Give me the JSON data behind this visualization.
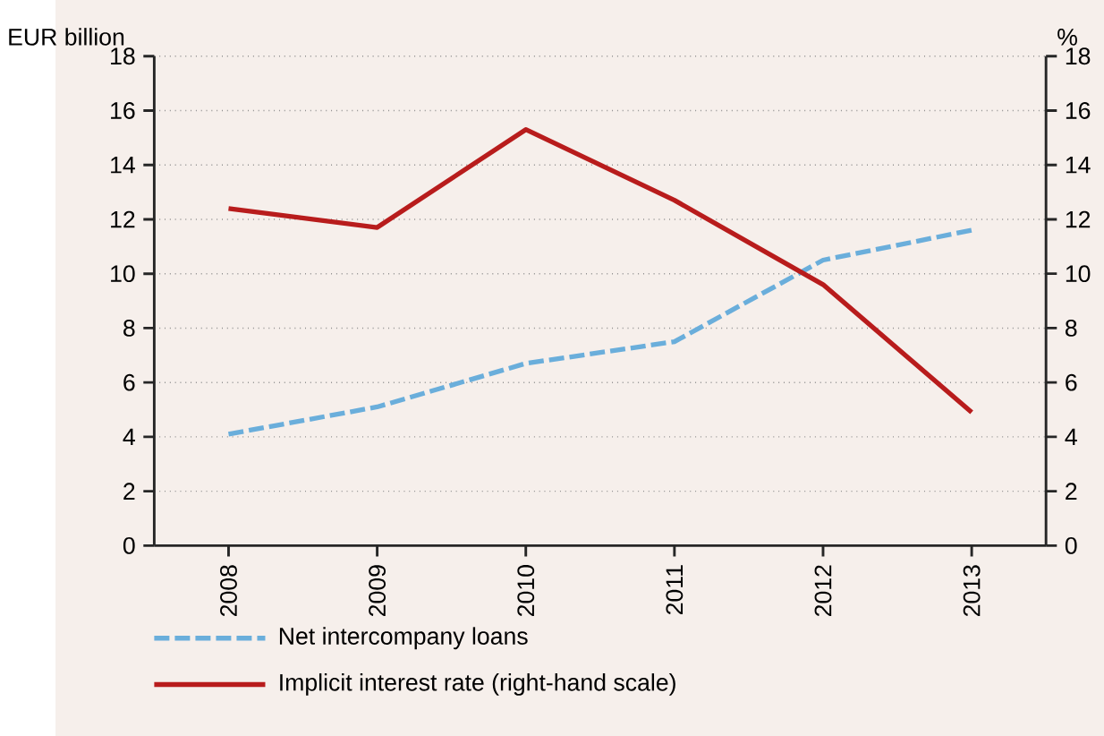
{
  "chart_data": {
    "type": "line",
    "ylabel": "EUR billion",
    "y2label": "%",
    "categories": [
      "2008",
      "2009",
      "2010",
      "2011",
      "2012",
      "2013"
    ],
    "series": [
      {
        "name": "Net intercompany loans",
        "color": "#6aaedb",
        "line_style": "dashed",
        "values": [
          4.1,
          5.1,
          6.7,
          7.5,
          10.5,
          11.6
        ]
      },
      {
        "name": "Implicit interest rate (right-hand scale)",
        "color": "#b81c1c",
        "line_style": "solid",
        "axis": "y2",
        "values": [
          12.4,
          11.7,
          15.3,
          12.7,
          9.6,
          4.9
        ]
      }
    ],
    "ylim": [
      0,
      18
    ],
    "yticks": [
      0,
      2,
      4,
      6,
      8,
      10,
      12,
      14,
      16,
      18
    ],
    "y2lim": [
      0,
      18
    ],
    "y2ticks": [
      0,
      2,
      4,
      6,
      8,
      10,
      12,
      14,
      16,
      18
    ],
    "grid": "y",
    "legend": "bottom"
  }
}
